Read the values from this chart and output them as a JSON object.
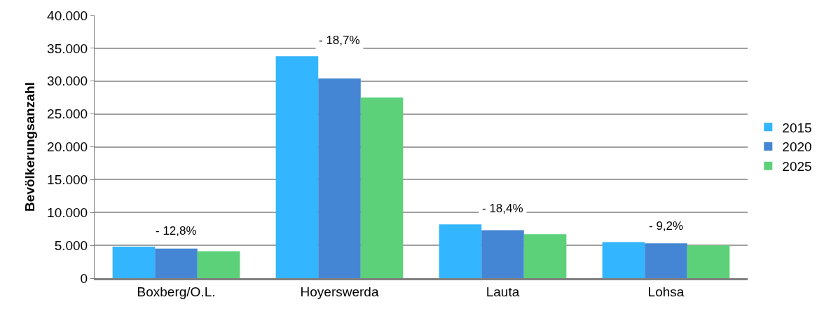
{
  "chart_data": {
    "type": "bar",
    "ylabel": "Bevölkerungsanzahl",
    "categories": [
      "Boxberg/O.L.",
      "Hoyerswerda",
      "Lauta",
      "Lohsa"
    ],
    "series": [
      {
        "name": "2015",
        "color": "#33b5ff",
        "values": [
          4800,
          33800,
          8200,
          5500
        ]
      },
      {
        "name": "2020",
        "color": "#4586d4",
        "values": [
          4500,
          30400,
          7300,
          5300
        ]
      },
      {
        "name": "2025",
        "color": "#5cd17a",
        "values": [
          4100,
          27500,
          6700,
          5000
        ]
      }
    ],
    "ylim": [
      0,
      40000
    ],
    "yticks": [
      {
        "value": 0,
        "label": "0"
      },
      {
        "value": 5000,
        "label": "5.000"
      },
      {
        "value": 10000,
        "label": "10.000"
      },
      {
        "value": 15000,
        "label": "15.000"
      },
      {
        "value": 20000,
        "label": "20.000"
      },
      {
        "value": 25000,
        "label": "25.000"
      },
      {
        "value": 30000,
        "label": "30.000"
      },
      {
        "value": 35000,
        "label": "35.000"
      },
      {
        "value": 40000,
        "label": "40.000"
      }
    ],
    "annotations": [
      "- 12,8%",
      "- 18,7%",
      "- 18,4%",
      "- 9,2%"
    ],
    "grid": "y",
    "legend": "right"
  }
}
